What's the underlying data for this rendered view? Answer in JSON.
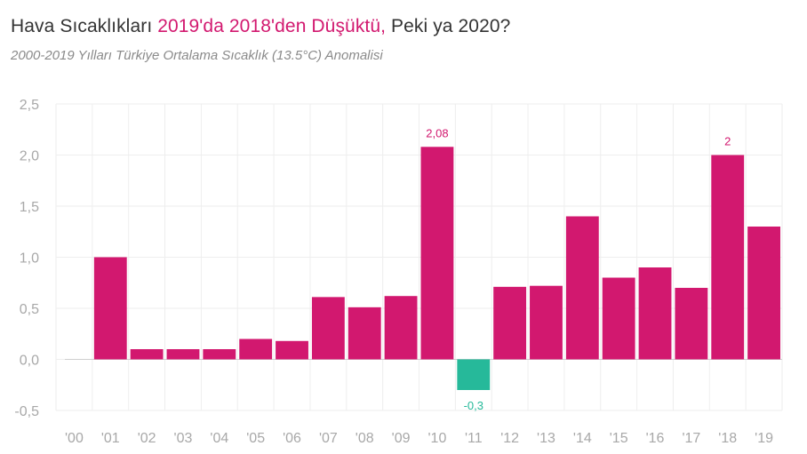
{
  "title": {
    "part1": "Hava Sıcaklıkları ",
    "highlight": "2019'da 2018'den Düşüktü,",
    "part2": " Peki ya 2020?"
  },
  "subtitle": "2000-2019 Yılları Türkiye Ortalama Sıcaklık (13.5°C) Anomalisi",
  "colors": {
    "positive": "#d2186f",
    "negative": "#26b99a",
    "grid": "#eeeeee",
    "axis_text": "#a8a8a8"
  },
  "chart_data": {
    "type": "bar",
    "title": "Hava Sıcaklıkları 2019'da 2018'den Düşüktü, Peki ya 2020?",
    "subtitle": "2000-2019 Yılları Türkiye Ortalama Sıcaklık (13.5°C) Anomalisi",
    "xlabel": "",
    "ylabel": "",
    "categories": [
      "'00",
      "'01",
      "'02",
      "'03",
      "'04",
      "'05",
      "'06",
      "'07",
      "'08",
      "'09",
      "'10",
      "'11",
      "'12",
      "'13",
      "'14",
      "'15",
      "'16",
      "'17",
      "'18",
      "'19"
    ],
    "values": [
      0,
      1.0,
      0.1,
      0.1,
      0.1,
      0.2,
      0.18,
      0.61,
      0.51,
      0.62,
      2.08,
      -0.3,
      0.71,
      0.72,
      1.4,
      0.8,
      0.9,
      0.7,
      2.0,
      1.3
    ],
    "data_labels": [
      {
        "category": "'10",
        "text": "2,08"
      },
      {
        "category": "'11",
        "text": "-0,3"
      },
      {
        "category": "'18",
        "text": "2"
      }
    ],
    "ylim": [
      -0.5,
      2.5
    ],
    "yticks": [
      2.5,
      2.0,
      1.5,
      1.0,
      0.5,
      0.0,
      -0.5
    ],
    "ytick_labels": [
      "2,5",
      "2,0",
      "1,5",
      "1,0",
      "0,5",
      "0,0",
      "-0,5"
    ],
    "grid": true,
    "legend": "none"
  }
}
